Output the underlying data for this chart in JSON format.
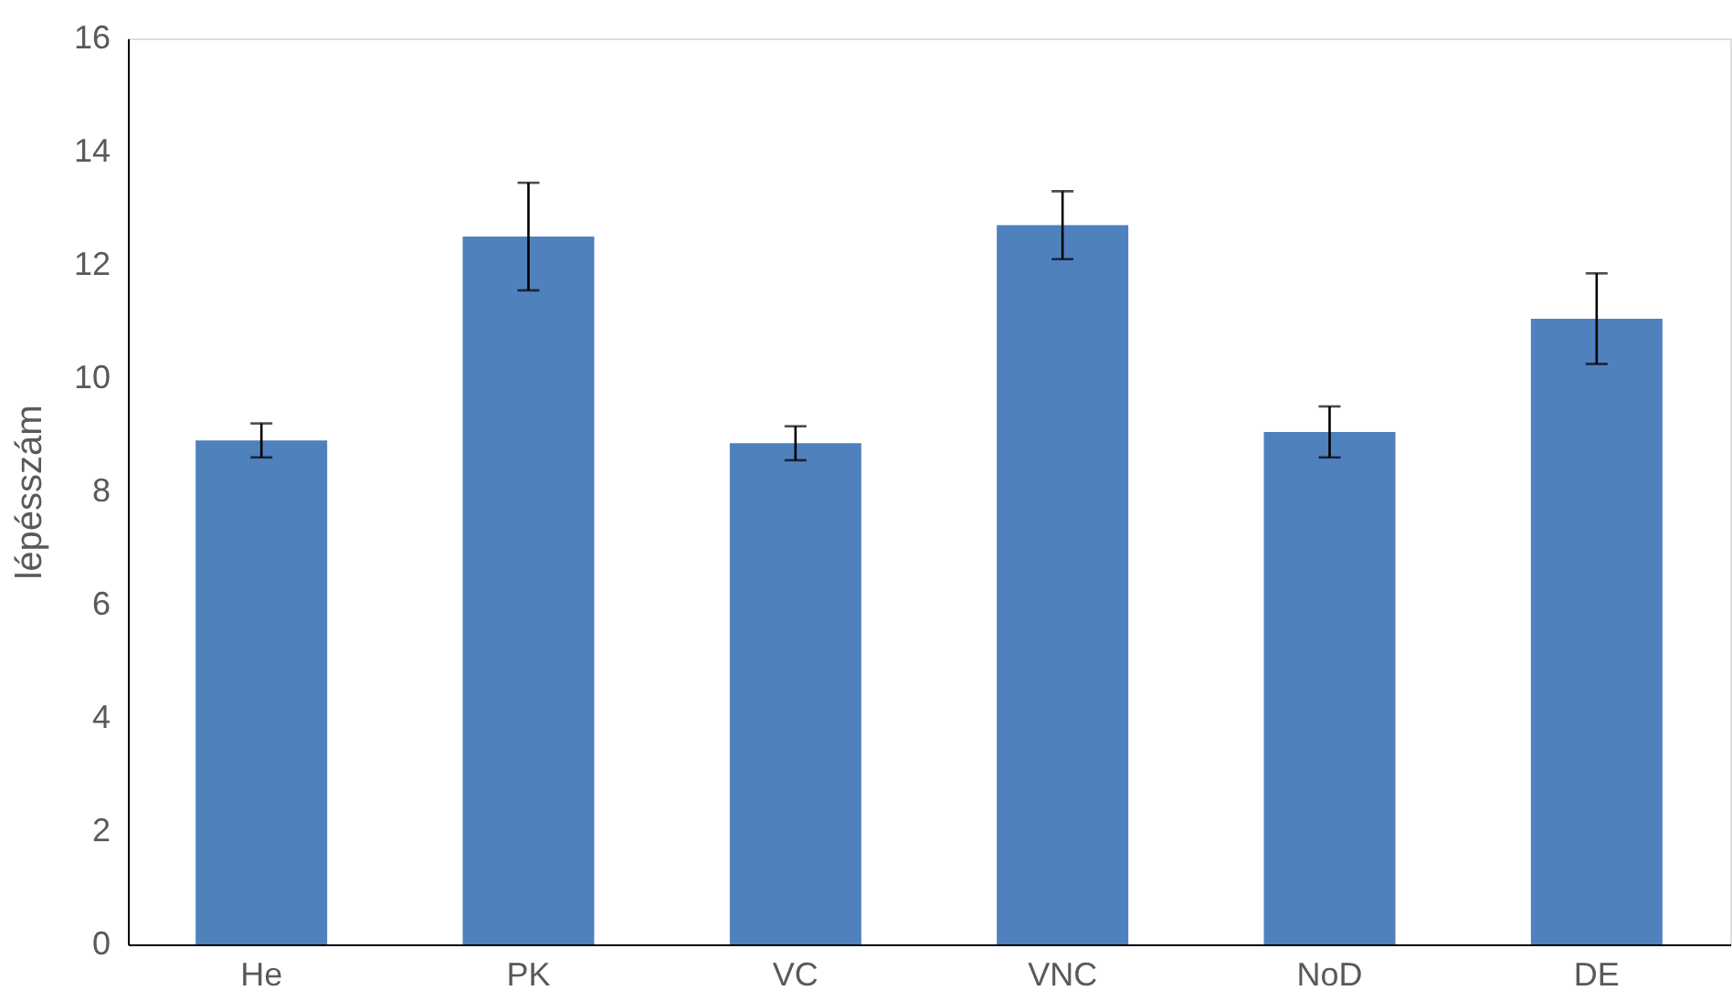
{
  "chart_data": {
    "type": "bar",
    "ylabel": "lépésszám",
    "categories": [
      "He",
      "PK",
      "VC",
      "VNC",
      "NoD",
      "DE"
    ],
    "values": [
      8.9,
      12.5,
      8.85,
      12.7,
      9.05,
      11.05
    ],
    "errors": [
      0.3,
      0.95,
      0.3,
      0.6,
      0.45,
      0.8
    ],
    "color": "#4f81bd",
    "ylim": [
      0,
      16
    ],
    "yticks": [
      0,
      2,
      4,
      6,
      8,
      10,
      12,
      14,
      16
    ],
    "grid": false
  }
}
